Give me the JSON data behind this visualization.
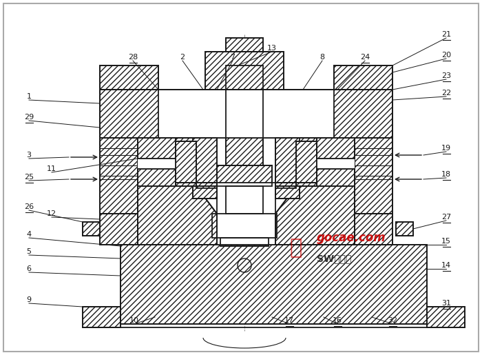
{
  "bg_color": "#ffffff",
  "lc": "#1a1a1a",
  "watermark_red": "#cc0000",
  "watermark_dark": "#222222",
  "wm1": "gocae.com",
  "wm2": "SW教程网",
  "fig_w": 7.0,
  "fig_h": 5.15,
  "dpi": 100
}
